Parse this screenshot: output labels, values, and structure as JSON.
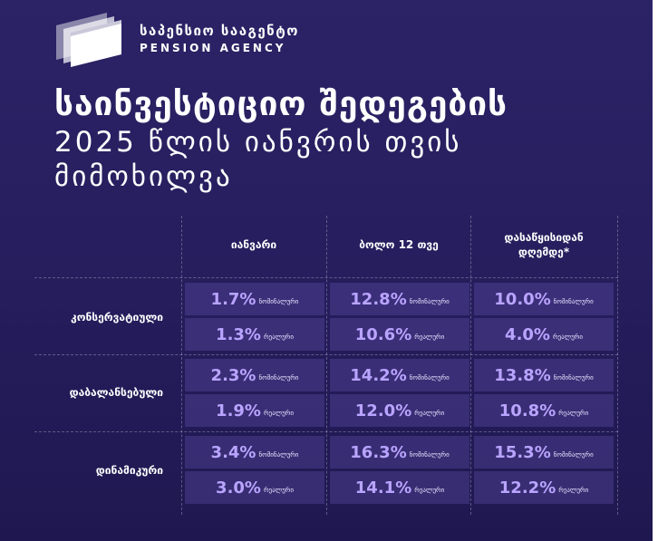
{
  "logo": {
    "name_ka": "საპენსიო სააგენტო",
    "name_en": "PENSION AGENCY"
  },
  "title": {
    "line1": "საინვესტიციო შედეგების",
    "line2": "2025 წლის იანვრის თვის",
    "line3": "მიმოხილვა"
  },
  "table": {
    "columns": [
      "იანვარი",
      "ბოლო 12 თვე",
      "დასაწყისიდან დღემდე*"
    ],
    "rows": [
      {
        "label": "კონსერვატიული",
        "cells": [
          [
            {
              "value": "1.7%",
              "kind": "ნომინალური"
            },
            {
              "value": "1.3%",
              "kind": "რეალური"
            }
          ],
          [
            {
              "value": "12.8%",
              "kind": "ნომინალური"
            },
            {
              "value": "10.6%",
              "kind": "რეალური"
            }
          ],
          [
            {
              "value": "10.0%",
              "kind": "ნომინალური"
            },
            {
              "value": "4.0%",
              "kind": "რეალური"
            }
          ]
        ]
      },
      {
        "label": "დაბალანსებული",
        "cells": [
          [
            {
              "value": "2.3%",
              "kind": "ნომინალური"
            },
            {
              "value": "1.9%",
              "kind": "რეალური"
            }
          ],
          [
            {
              "value": "14.2%",
              "kind": "ნომინალური"
            },
            {
              "value": "12.0%",
              "kind": "რეალური"
            }
          ],
          [
            {
              "value": "13.8%",
              "kind": "ნომინალური"
            },
            {
              "value": "10.8%",
              "kind": "რეალური"
            }
          ]
        ]
      },
      {
        "label": "დინამიკური",
        "cells": [
          [
            {
              "value": "3.4%",
              "kind": "ნომინალური"
            },
            {
              "value": "3.0%",
              "kind": "რეალური"
            }
          ],
          [
            {
              "value": "16.3%",
              "kind": "ნომინალური"
            },
            {
              "value": "14.1%",
              "kind": "რეალური"
            }
          ],
          [
            {
              "value": "15.3%",
              "kind": "ნომინალური"
            },
            {
              "value": "12.2%",
              "kind": "რეალური"
            }
          ]
        ]
      }
    ]
  },
  "colors": {
    "background": "#2b2366",
    "value_text": "#b9a4ff",
    "cell_fill": "#4b3c8c"
  }
}
